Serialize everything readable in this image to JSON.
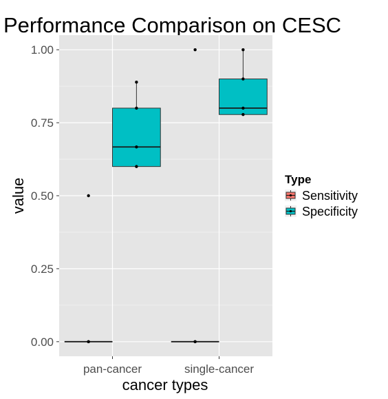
{
  "chart_data": {
    "type": "boxplot",
    "title": "Performance Comparison on CESC",
    "xlabel": "cancer types",
    "ylabel": "value",
    "categories": [
      "pan-cancer",
      "single-cancer"
    ],
    "ylim": [
      -0.05,
      1.05
    ],
    "yticks": [
      "0.00",
      "0.25",
      "0.50",
      "0.75",
      "1.00"
    ],
    "ytick_values": [
      0,
      0.25,
      0.5,
      0.75,
      1.0
    ],
    "grid": true,
    "legend": {
      "title": "Type",
      "position": "right",
      "entries": [
        "Sensitivity",
        "Specificity"
      ]
    },
    "series": [
      {
        "name": "Sensitivity",
        "color": "#f8766d",
        "boxes": [
          {
            "category": "pan-cancer",
            "min": 0,
            "q1": 0,
            "median": 0,
            "q3": 0,
            "max": 0
          },
          {
            "category": "single-cancer",
            "min": 0,
            "q1": 0,
            "median": 0,
            "q3": 0,
            "max": 0
          }
        ],
        "points": [
          {
            "category": "pan-cancer",
            "values": [
              0,
              0,
              0.5
            ]
          },
          {
            "category": "single-cancer",
            "values": [
              0,
              0,
              1.0
            ]
          }
        ]
      },
      {
        "name": "Specificity",
        "color": "#00bfc4",
        "boxes": [
          {
            "category": "pan-cancer",
            "min": 0.6,
            "q1": 0.6,
            "median": 0.667,
            "q3": 0.8,
            "max": 0.889
          },
          {
            "category": "single-cancer",
            "min": 0.778,
            "q1": 0.778,
            "median": 0.8,
            "q3": 0.9,
            "max": 1.0
          }
        ],
        "points": [
          {
            "category": "pan-cancer",
            "values": [
              0.6,
              0.667,
              0.8,
              0.889
            ]
          },
          {
            "category": "single-cancer",
            "values": [
              0.778,
              0.8,
              0.9,
              1.0
            ]
          }
        ]
      }
    ]
  }
}
